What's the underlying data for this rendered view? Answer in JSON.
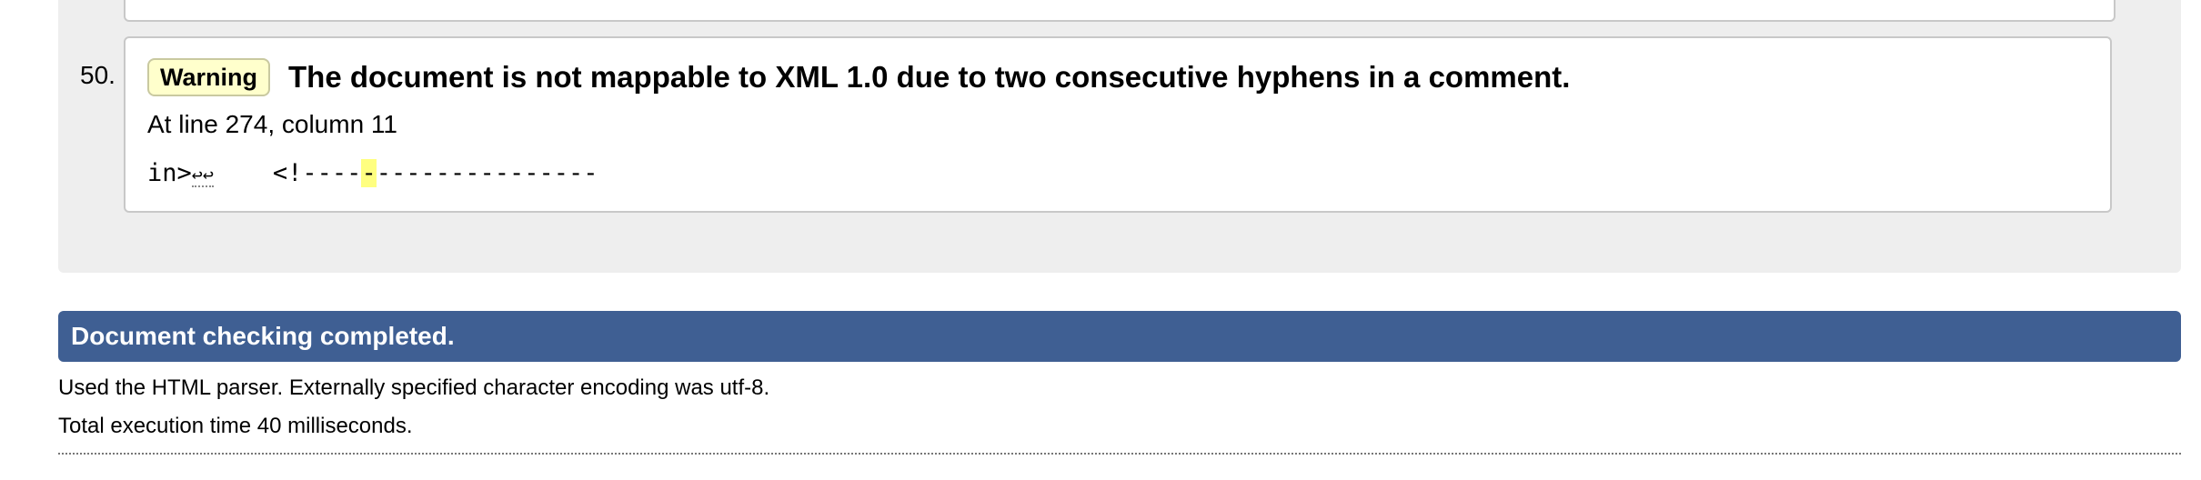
{
  "message": {
    "number": "50.",
    "type_label": "Warning",
    "title": "The document is not mappable to XML 1.0 due to two consecutive hyphens in a comment.",
    "location": "At line 274, column 11",
    "extract": {
      "before": "in>",
      "line_breaks": "↩↩",
      "middle": "    <!----",
      "highlighted": "-",
      "after": "---------------"
    }
  },
  "completion": {
    "title": "Document checking completed."
  },
  "info": {
    "parser_line": "Used the HTML parser. Externally specified character encoding was utf-8.",
    "time_line": "Total execution time 40 milliseconds."
  },
  "colors": {
    "panel_background": "#eeeeee",
    "warning_badge": "#ffffcc",
    "completion_bar": "#3f5f93",
    "highlight": "#ffff80"
  }
}
